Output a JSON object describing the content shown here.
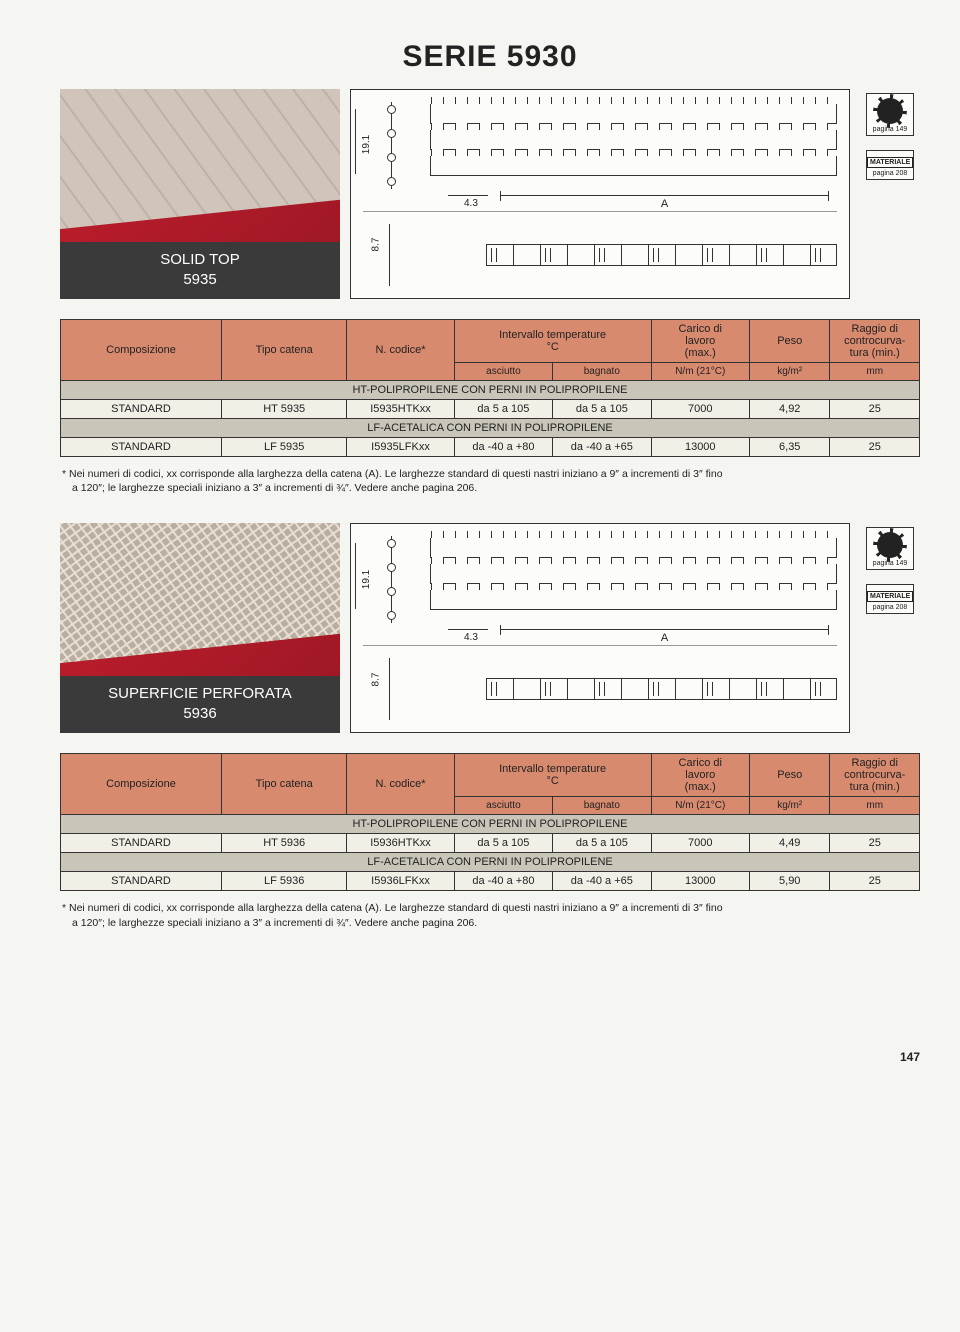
{
  "page_title": "SERIE 5930",
  "page_number": "147",
  "tags": {
    "gear_sub": "pagina 149",
    "material_label": "MATERIALE",
    "material_sub": "pagina 208"
  },
  "dims": {
    "pitch": "19.1",
    "gap": "4.3",
    "width": "A",
    "height": "8.7"
  },
  "products": [
    {
      "label_line1": "SOLID TOP",
      "label_line2": "5935",
      "photo_variant": "solid",
      "strip_variant": "",
      "table": {
        "headers": {
          "c0": "Composizione",
          "c1": "Tipo catena",
          "c2": "N. codice*",
          "c3a": "Intervallo temperature",
          "c3b": "°C",
          "c3c1": "asciutto",
          "c3c2": "bagnato",
          "c4a": "Carico di",
          "c4b": "lavoro",
          "c4c": "(max.)",
          "c4d": "N/m (21°C)",
          "c5a": "Peso",
          "c5d": "kg/m²",
          "c6a": "Raggio di",
          "c6b": "controcurva-",
          "c6c": "tura (min.)",
          "c6d": "mm"
        },
        "sections": [
          {
            "title": "HT-POLIPROPILENE CON PERNI IN POLIPROPILENE",
            "rows": [
              {
                "comp": "STANDARD",
                "tipo": "HT 5935",
                "code": "I5935HTKxx",
                "t1": "da 5 a 105",
                "t2": "da 5 a 105",
                "load": "7000",
                "peso": "4,92",
                "radius": "25"
              }
            ]
          },
          {
            "title": "LF-ACETALICA CON PERNI IN POLIPROPILENE",
            "rows": [
              {
                "comp": "STANDARD",
                "tipo": "LF 5935",
                "code": "I5935LFKxx",
                "t1": "da -40 a +80",
                "t2": "da -40 a +65",
                "load": "13000",
                "peso": "6,35",
                "radius": "25"
              }
            ]
          }
        ]
      }
    },
    {
      "label_line1": "SUPERFICIE PERFORATA",
      "label_line2": "5936",
      "photo_variant": "perf",
      "strip_variant": "perf",
      "table": {
        "headers": {
          "c0": "Composizione",
          "c1": "Tipo catena",
          "c2": "N. codice*",
          "c3a": "Intervallo temperature",
          "c3b": "°C",
          "c3c1": "asciutto",
          "c3c2": "bagnato",
          "c4a": "Carico di",
          "c4b": "lavoro",
          "c4c": "(max.)",
          "c4d": "N/m (21°C)",
          "c5a": "Peso",
          "c5d": "kg/m²",
          "c6a": "Raggio di",
          "c6b": "controcurva-",
          "c6c": "tura (min.)",
          "c6d": "mm"
        },
        "sections": [
          {
            "title": "HT-POLIPROPILENE CON PERNI IN POLIPROPILENE",
            "rows": [
              {
                "comp": "STANDARD",
                "tipo": "HT 5936",
                "code": "I5936HTKxx",
                "t1": "da 5 a 105",
                "t2": "da 5 a 105",
                "load": "7000",
                "peso": "4,49",
                "radius": "25"
              }
            ]
          },
          {
            "title": "LF-ACETALICA CON PERNI IN POLIPROPILENE",
            "rows": [
              {
                "comp": "STANDARD",
                "tipo": "LF 5936",
                "code": "I5936LFKxx",
                "t1": "da -40 a +80",
                "t2": "da -40 a +65",
                "load": "13000",
                "peso": "5,90",
                "radius": "25"
              }
            ]
          }
        ]
      }
    }
  ],
  "footnote_star": "*",
  "footnote_l1": "Nei numeri di codici, xx corrisponde alla larghezza della catena (A). Le larghezze standard di questi nastri iniziano a 9″ a incrementi di 3″ fino",
  "footnote_l2": "a 120″; le larghezze speciali iniziano a 3″ a incrementi di ¾″. Vedere anche pagina 206."
}
